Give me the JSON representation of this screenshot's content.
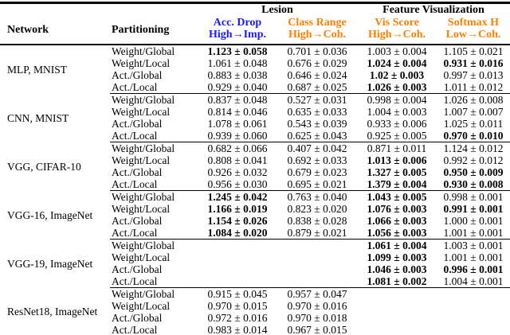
{
  "table": {
    "header": {
      "network": "Network",
      "partitioning": "Partitioning"
    },
    "groups": [
      {
        "label": "Lesion"
      },
      {
        "label": "Feature Visualization"
      }
    ],
    "columns": [
      {
        "key": "acc-drop",
        "title": "Acc. Drop",
        "subtitle": "High→Imp.",
        "color": "#1a1aff"
      },
      {
        "key": "class-range",
        "title": "Class Range",
        "subtitle": "High→Coh.",
        "color": "#ff8000"
      },
      {
        "key": "vis-score",
        "title": "Vis Score",
        "subtitle": "High→Coh.",
        "color": "#ff8000"
      },
      {
        "key": "softmax-h",
        "title": "Softmax H",
        "subtitle": "Low→Coh.",
        "color": "#ff8000"
      }
    ],
    "colors": {
      "accent_blue": "#1a1aff",
      "accent_orange": "#ff8000",
      "text": "#000000",
      "background": "#ffffff"
    },
    "blocks": [
      {
        "network": "MLP, MNIST",
        "rows": [
          {
            "partitioning": "Weight/Global",
            "values": [
              "1.123 ± 0.058",
              "0.701 ± 0.036",
              "1.003 ± 0.004",
              "1.105 ± 0.021"
            ],
            "bold": [
              true,
              false,
              false,
              false
            ]
          },
          {
            "partitioning": "Weight/Local",
            "values": [
              "1.061 ± 0.048",
              "0.676 ± 0.029",
              "1.024 ± 0.004",
              "0.931 ± 0.016"
            ],
            "bold": [
              false,
              false,
              true,
              true
            ]
          },
          {
            "partitioning": "Act./Global",
            "values": [
              "0.883 ± 0.038",
              "0.646 ± 0.024",
              "1.02 ± 0.003",
              "0.997 ± 0.013"
            ],
            "bold": [
              false,
              false,
              true,
              false
            ]
          },
          {
            "partitioning": "Act./Local",
            "values": [
              "0.929 ± 0.040",
              "0.687 ± 0.025",
              "1.026 ± 0.003",
              "1.011 ± 0.012"
            ],
            "bold": [
              false,
              false,
              true,
              false
            ]
          }
        ]
      },
      {
        "network": "CNN, MNIST",
        "rows": [
          {
            "partitioning": "Weight/Global",
            "values": [
              "0.837 ± 0.048",
              "0.527 ± 0.031",
              "0.998 ± 0.004",
              "1.026 ± 0.008"
            ],
            "bold": [
              false,
              false,
              false,
              false
            ]
          },
          {
            "partitioning": "Weight/Local",
            "values": [
              "0.814 ± 0.046",
              "0.635 ± 0.033",
              "1.004 ± 0.003",
              "1.007 ± 0.007"
            ],
            "bold": [
              false,
              false,
              false,
              false
            ]
          },
          {
            "partitioning": "Act./Global",
            "values": [
              "1.078 ± 0.061",
              "0.543 ± 0.039",
              "0.933 ± 0.006",
              "1.025 ± 0.011"
            ],
            "bold": [
              false,
              false,
              false,
              false
            ]
          },
          {
            "partitioning": "Act./Local",
            "values": [
              "0.939 ± 0.060",
              "0.625 ± 0.043",
              "0.925 ± 0.005",
              "0.970 ± 0.010"
            ],
            "bold": [
              false,
              false,
              false,
              true
            ]
          }
        ]
      },
      {
        "network": "VGG, CIFAR-10",
        "rows": [
          {
            "partitioning": "Weight/Global",
            "values": [
              "0.682 ± 0.066",
              "0.407 ± 0.042",
              "0.871 ± 0.011",
              "1.124 ± 0.012"
            ],
            "bold": [
              false,
              false,
              false,
              false
            ]
          },
          {
            "partitioning": "Weight/Local",
            "values": [
              "0.808 ± 0.041",
              "0.692 ± 0.033",
              "1.013 ± 0.006",
              "0.992 ± 0.012"
            ],
            "bold": [
              false,
              false,
              true,
              false
            ]
          },
          {
            "partitioning": "Act./Global",
            "values": [
              "0.926 ± 0.032",
              "0.679 ± 0.023",
              "1.327 ± 0.005",
              "0.950 ± 0.009"
            ],
            "bold": [
              false,
              false,
              true,
              true
            ]
          },
          {
            "partitioning": "Act./Local",
            "values": [
              "0.956 ± 0.030",
              "0.695 ± 0.021",
              "1.379 ± 0.004",
              "0.930 ± 0.008"
            ],
            "bold": [
              false,
              false,
              true,
              true
            ]
          }
        ]
      },
      {
        "network": "VGG-16, ImageNet",
        "rows": [
          {
            "partitioning": "Weight/Global",
            "values": [
              "1.245 ± 0.042",
              "0.763 ± 0.040",
              "1.043 ± 0.005",
              "0.998 ± 0.001"
            ],
            "bold": [
              true,
              false,
              true,
              false
            ]
          },
          {
            "partitioning": "Weight/Local",
            "values": [
              "1.166 ± 0.019",
              "0.823 ± 0.020",
              "1.076 ± 0.003",
              "0.991 ± 0.001"
            ],
            "bold": [
              true,
              false,
              true,
              true
            ]
          },
          {
            "partitioning": "Act./Global",
            "values": [
              "1.154 ± 0.026",
              "0.838 ± 0.028",
              "1.066 ± 0.003",
              "1.000 ± 0.001"
            ],
            "bold": [
              true,
              false,
              true,
              false
            ]
          },
          {
            "partitioning": "Act./Local",
            "values": [
              "1.084 ± 0.020",
              "0.879 ± 0.021",
              "1.056 ± 0.003",
              "1.001 ± 0.001"
            ],
            "bold": [
              true,
              false,
              true,
              false
            ]
          }
        ]
      },
      {
        "network": "VGG-19, ImageNet",
        "rows": [
          {
            "partitioning": "Weight/Global",
            "values": [
              "",
              "",
              "1.061 ± 0.004",
              "1.003 ± 0.001"
            ],
            "bold": [
              false,
              false,
              true,
              false
            ]
          },
          {
            "partitioning": "Weight/Local",
            "values": [
              "",
              "",
              "1.099 ± 0.003",
              "1.001 ± 0.001"
            ],
            "bold": [
              false,
              false,
              true,
              false
            ]
          },
          {
            "partitioning": "Act./Global",
            "values": [
              "",
              "",
              "1.046 ± 0.003",
              "0.996 ± 0.001"
            ],
            "bold": [
              false,
              false,
              true,
              true
            ]
          },
          {
            "partitioning": "Act./Local",
            "values": [
              "",
              "",
              "1.081 ± 0.002",
              "1.004 ± 0.001"
            ],
            "bold": [
              false,
              false,
              true,
              false
            ]
          }
        ]
      },
      {
        "network": "ResNet18, ImageNet",
        "rows": [
          {
            "partitioning": "Weight/Global",
            "values": [
              "0.915 ± 0.045",
              "0.957 ± 0.047",
              "",
              ""
            ],
            "bold": [
              false,
              false,
              false,
              false
            ]
          },
          {
            "partitioning": "Weight/Local",
            "values": [
              "0.970 ± 0.015",
              "0.970 ± 0.016",
              "",
              ""
            ],
            "bold": [
              false,
              false,
              false,
              false
            ]
          },
          {
            "partitioning": "Act./Global",
            "values": [
              "0.972 ± 0.016",
              "0.970 ± 0.018",
              "",
              ""
            ],
            "bold": [
              false,
              false,
              false,
              false
            ]
          },
          {
            "partitioning": "Act./Local",
            "values": [
              "0.983 ± 0.014",
              "0.967 ± 0.015",
              "",
              ""
            ],
            "bold": [
              false,
              false,
              false,
              false
            ]
          }
        ]
      }
    ]
  }
}
